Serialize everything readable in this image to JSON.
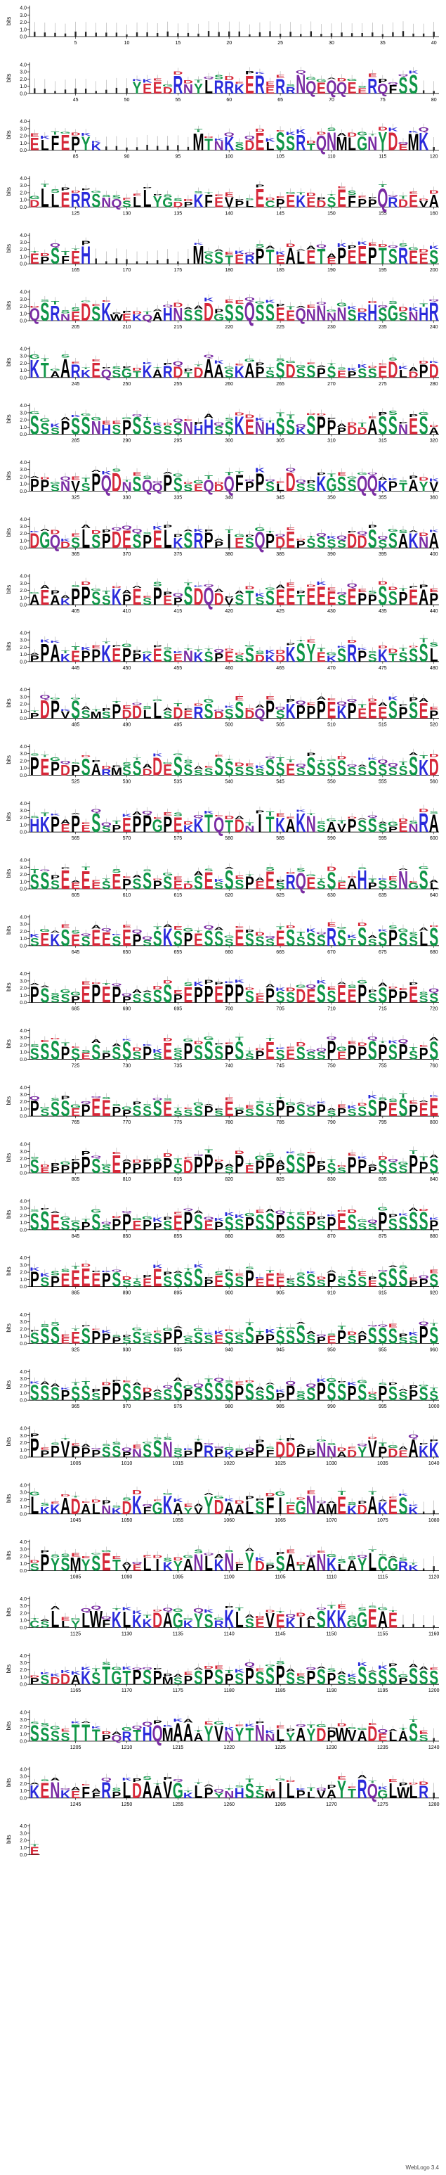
{
  "chart_data": {
    "type": "sequence-logo",
    "ylabel": "bits",
    "ylim": [
      0,
      4.3
    ],
    "y_ticks": [
      "0.0",
      "1.0",
      "2.0",
      "3.0",
      "4.0"
    ],
    "residues_per_row": 40,
    "total_positions": 1281,
    "tick_every": 5,
    "colors": {
      "polar": "#109648",
      "basic": "#2a2adb",
      "acidic": "#d62839",
      "hydrophobic": "#000000",
      "neutral": "#7a2ca3",
      "axis": "#000000",
      "error": "#9c9c9c"
    },
    "consensus_rows": [
      "........................................",
      "..........YEEDRNYLRRKERERRNQEQQEERQFSS..",
      "ELFEPYK.........MTNKSDELSSRTQNMLGNYDEMK.",
      "DLLERRSNQSLLYGDPKFEVPLECPEKEDSEFPPQRDEVA",
      "EPSFEH..........MSSTERPTEALETEPEEPTSREES",
      "QSRNEDSKWEKQAHNSSDGSSQSSEEQNNNNSRHSGSNHR",
      "KTAARKEQSGTKARDTDAASKAPSSDSSPSEPSSEDLDPD",
      "SSSPSSNHSPSSSSSNHHSSKENHSSKSPPPDDASSNESA",
      "PPSNVSPQDNSQQPSSEQDQFPPSLDSSKGSSQQKPTAYVPM",
      "DGQDSLSPDESPELKSRPPIESQPDEPSSSSDDSSSAKNA",
      "AEAKPPSSKPESPEPSDQDVSTSSEETEEESEPPSSPEAP",
      "PPAKEPPKEPPKESENKSPESSDKDKSYEKSRPSKTSSSLS",
      "PDPVSSMSPDDLLSDERSDSSDQPSKPPPEKPEEESPSEPS",
      "PEPDPSARMSSDDESSSSSSSSSSSESSSSSSSSSSSSKD",
      "HKPEPESSPEPPGPEKKTQTDNITKAKNSAVPSSSPENRA",
      "SSSEEEESEPSSPSEDSESSSPEESRQESSEAHPSSNGSL",
      "SEKSESEESEPSSKSPESSSESSSESSSSRSTSSSPSSLS",
      "PSSSPEPEPPSSSSPEPPEPPSEPSSDESSEEPSSPPESS",
      "SSSPSESPSSSPSESPSSSPSSPESESSSPEPPSPSPSPS",
      "PSSSEPEEPPSSSESSSPSEPSSSPPSSPSPSSSPESPEE",
      "SEPPPPSSEPPPPPSDPPPSPEPPPSSPPSSPPPSSSPPS",
      "SSESSPSSPPEPPSEPSEPSSPSSPSSPSPESSSPSSSSP",
      "PSPEEEEPSSSEESSSSPESSPEEESSSSPSSSESSSPPS",
      "SSSEESPPPSSSSPPSSSESSSPPSSSSPEPSPSSSSSPS",
      "SSSPSSSPPSSPSSSPSSSSPSSSPPSSPSSPSSPSSPSS",
      "PPPVPPPSSPNSSNSPPRPKPPPFDDPPNNADYVPDEAKK",
      "LKKADALNKDKFGKAYVYDAALSFIEGNAMEKDAKESK",
      "SPYSMYSETVELIKYANLKNFYDPSATANKLAYLCGRK",
      "CSLLYLWFKLKKDAGKYSRKLSEVEKILSKKGGEAE",
      "PSDDAKSTGTPSPMSPSPSPSPSSPSSPSPSSSSSSPSSSS",
      "SSSSTTTPQRTHQMAAAYVNYTNNLYAYDPWVADELASS",
      "KENKEFFRPLDAAVGKLPYNHSSMILPLVAYTRQGLWLR",
      "EA"
    ]
  }
}
